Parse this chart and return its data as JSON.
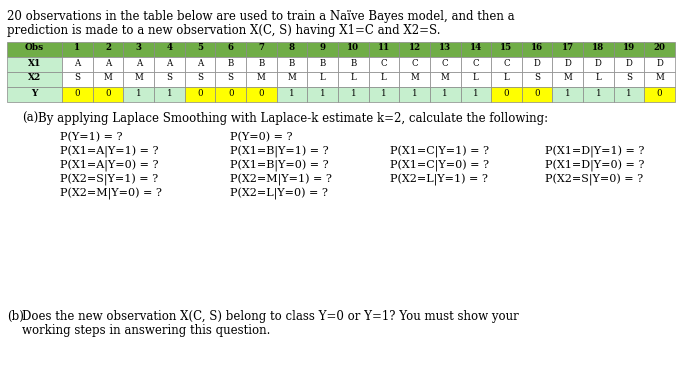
{
  "intro_line1": "20 observations in the table below are used to train a Naïve Bayes model, and then a",
  "intro_line2": "prediction is made to a new observation X(C, S) having X1=C and X2=S.",
  "obs_numbers": [
    "Obs",
    "1",
    "2",
    "3",
    "4",
    "5",
    "6",
    "7",
    "8",
    "9",
    "10",
    "11",
    "12",
    "13",
    "14",
    "15",
    "16",
    "17",
    "18",
    "19",
    "20"
  ],
  "X1": [
    "X1",
    "A",
    "A",
    "A",
    "A",
    "A",
    "B",
    "B",
    "B",
    "B",
    "B",
    "C",
    "C",
    "C",
    "C",
    "C",
    "D",
    "D",
    "D",
    "D",
    "D"
  ],
  "X2": [
    "X2",
    "S",
    "M",
    "M",
    "S",
    "S",
    "S",
    "M",
    "M",
    "L",
    "L",
    "L",
    "M",
    "M",
    "L",
    "L",
    "S",
    "M",
    "L",
    "S",
    "M"
  ],
  "Y": [
    "Y",
    "0",
    "0",
    "1",
    "1",
    "0",
    "0",
    "0",
    "1",
    "1",
    "1",
    "1",
    "1",
    "1",
    "1",
    "0",
    "0",
    "1",
    "1",
    "1",
    "0"
  ],
  "header_bg": "#70ad47",
  "cell_bg_light": "#c6efce",
  "cell_bg_yellow": "#ffff00",
  "cell_bg_white": "#ffffff",
  "part_a_label": "(a)",
  "part_a_text": "By applying Laplace Smoothing with Laplace-k estimate k=2, calculate the following:",
  "part_b_label": "(b)",
  "part_b_text": "Does the new observation X(C, S) belong to class Y=0 or Y=1? You must show your",
  "part_b_text2": "working steps in answering this question.",
  "prob_col1": [
    "P(Y=1) = ?",
    "P(X1=A|Y=1) = ?",
    "P(X1=A|Y=0) = ?",
    "P(X2=S|Y=1) = ?",
    "P(X2=M|Y=0) = ?"
  ],
  "prob_col2": [
    "P(Y=0) = ?",
    "P(X1=B|Y=1) = ?  P(X1=C|Y=1) = ?",
    "P(X1=B|Y=0) = ?  P(X1=C|Y=0) = ?",
    "P(X2=M|Y=1) = ?  P(X2=L|Y=1) = ?",
    "P(X2=L|Y=0) = ?"
  ],
  "prob_col4": [
    "",
    "P(X1=D|Y=1) = ?",
    "P(X1=D|Y=0) = ?",
    "P(X2=S|Y=0) = ?",
    ""
  ],
  "figw": 6.82,
  "figh": 3.65,
  "dpi": 100
}
